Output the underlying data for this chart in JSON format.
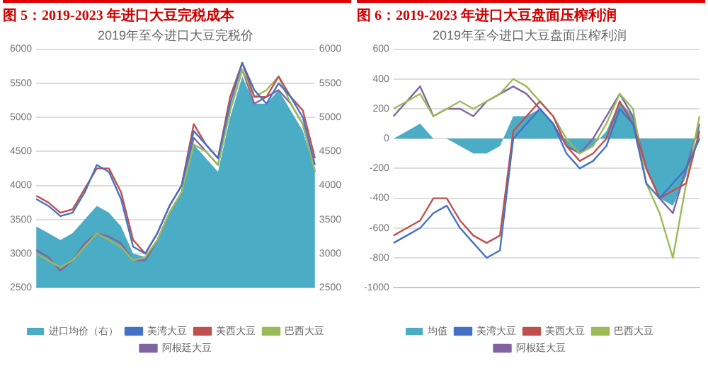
{
  "chart_data": [
    {
      "type": "line",
      "title": "图 5：2019-2023 年进口大豆完税成本",
      "subtitle": "2019年至今进口大豆完税价",
      "categories": [
        null,
        null,
        null,
        null,
        null,
        null,
        null,
        null,
        null,
        null,
        null,
        null,
        null,
        null,
        null,
        null,
        null,
        null,
        null,
        null,
        null,
        null,
        null,
        null
      ],
      "ylim": [
        2500,
        6000
      ],
      "yticks": [
        2500,
        3000,
        3500,
        4000,
        4500,
        5000,
        5500,
        6000
      ],
      "y2lim": [
        2500,
        6000
      ],
      "y2ticks": [
        2500,
        3000,
        3500,
        4000,
        4500,
        5000,
        5500,
        6000
      ],
      "grid": "y",
      "legend": "bottom",
      "marker": "none",
      "series": [
        {
          "name": "进口均价（右）",
          "type": "area",
          "axis": "y2",
          "color": "#4bacc6",
          "values": [
            3400,
            3300,
            3200,
            3300,
            3500,
            3700,
            3600,
            3400,
            3000,
            2950,
            3200,
            3600,
            3900,
            4600,
            4400,
            4200,
            5000,
            5600,
            5200,
            5200,
            5400,
            5100,
            4800,
            4200
          ]
        },
        {
          "name": "美湾大豆",
          "color": "#4472c4",
          "values": [
            3800,
            3700,
            3550,
            3600,
            3900,
            4300,
            4200,
            3800,
            3100,
            3000,
            3300,
            3700,
            4000,
            4800,
            4600,
            4400,
            5200,
            5800,
            5400,
            5200,
            5500,
            5300,
            5000,
            4300
          ]
        },
        {
          "name": "美西大豆",
          "color": "#c0504d",
          "values": [
            3850,
            3750,
            3600,
            3650,
            3950,
            4250,
            4250,
            3900,
            3200,
            3000,
            3300,
            3700,
            4000,
            4900,
            4600,
            4400,
            5300,
            5800,
            5300,
            5300,
            5600,
            5300,
            5100,
            4400
          ]
        },
        {
          "name": "巴西大豆",
          "color": "#9bbb59",
          "values": [
            3000,
            2900,
            2800,
            2900,
            3100,
            3300,
            3200,
            3100,
            2900,
            2950,
            3200,
            3600,
            3900,
            4600,
            4500,
            4300,
            5100,
            5700,
            5300,
            5400,
            5600,
            5200,
            4900,
            4200
          ]
        },
        {
          "name": "阿根廷大豆",
          "color": "#8064a2",
          "values": [
            3050,
            2950,
            2750,
            2900,
            3150,
            3300,
            3250,
            3150,
            2900,
            2900,
            3200,
            3600,
            3900,
            4700,
            4500,
            4300,
            5100,
            5700,
            5200,
            5300,
            5400,
            5200,
            4900,
            4200
          ]
        }
      ]
    },
    {
      "type": "line",
      "title": "图 6：2019-2023 年进口大豆盘面压榨利润",
      "subtitle": "2019年至今进口大豆盘面压榨利润",
      "categories": [
        null,
        null,
        null,
        null,
        null,
        null,
        null,
        null,
        null,
        null,
        null,
        null,
        null,
        null,
        null,
        null,
        null,
        null,
        null,
        null,
        null,
        null,
        null,
        null
      ],
      "ylim": [
        -1000,
        600
      ],
      "yticks": [
        -1000,
        -800,
        -600,
        -400,
        -200,
        0,
        200,
        400,
        600
      ],
      "grid": "y",
      "legend": "bottom",
      "marker": "none",
      "series": [
        {
          "name": "均值",
          "type": "area",
          "color": "#4bacc6",
          "values": [
            0,
            50,
            100,
            0,
            0,
            -50,
            -100,
            -100,
            -50,
            150,
            150,
            200,
            100,
            -50,
            -100,
            -50,
            50,
            250,
            150,
            -200,
            -400,
            -450,
            -250,
            100
          ]
        },
        {
          "name": "美湾大豆",
          "color": "#4472c4",
          "values": [
            -700,
            -650,
            -600,
            -500,
            -450,
            -600,
            -700,
            -800,
            -750,
            0,
            100,
            200,
            100,
            -100,
            -200,
            -150,
            -50,
            200,
            100,
            -300,
            -400,
            -300,
            -200,
            0
          ]
        },
        {
          "name": "美西大豆",
          "color": "#c0504d",
          "values": [
            -650,
            -600,
            -550,
            -400,
            -400,
            -550,
            -650,
            -700,
            -650,
            50,
            150,
            250,
            150,
            -50,
            -150,
            -100,
            0,
            250,
            100,
            -200,
            -400,
            -350,
            -300,
            50
          ]
        },
        {
          "name": "巴西大豆",
          "color": "#9bbb59",
          "values": [
            200,
            250,
            300,
            150,
            200,
            250,
            200,
            250,
            300,
            400,
            350,
            250,
            150,
            0,
            -100,
            -50,
            100,
            300,
            200,
            -300,
            -500,
            -800,
            -300,
            150
          ]
        },
        {
          "name": "阿根廷大豆",
          "color": "#8064a2",
          "values": [
            150,
            250,
            350,
            150,
            200,
            200,
            150,
            250,
            300,
            350,
            300,
            200,
            100,
            -50,
            -100,
            0,
            150,
            300,
            150,
            -200,
            -400,
            -500,
            -200,
            100
          ]
        }
      ]
    }
  ]
}
